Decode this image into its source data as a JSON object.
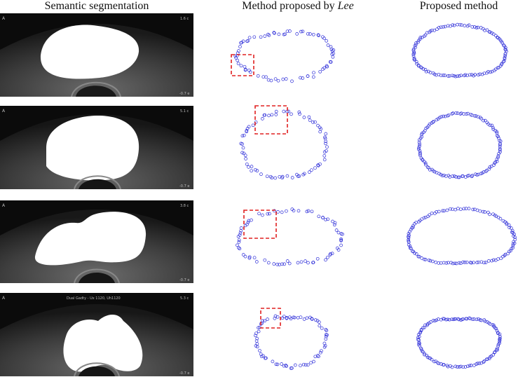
{
  "headers": {
    "col1": "Semantic segmentation",
    "col2_prefix": "Method proposed by ",
    "col2_emph": "Lee",
    "col3": "Proposed method"
  },
  "overlays": {
    "row1_corner": "A",
    "row1_top_right": "1.6 c",
    "row1_bottom_right": "-0.7 e",
    "row2_corner": "A",
    "row2_top_right": "5.1 c",
    "row2_bottom_right": "-0.7 e",
    "row3_corner": "A",
    "row3_top_right": "3.8 c",
    "row3_bottom_right": "-0.7 e",
    "row4_corner": "A",
    "row4_top_center": "Dual Gadty - Ux 1120, Uh1120",
    "row4_top_right": "5.3 c",
    "row4_bottom_right": "-0.7 e"
  },
  "colors": {
    "point": "#2b2bd8",
    "highlight": "#e02020",
    "panel_bg": "#0b0b0b",
    "mask": "#ffffff"
  }
}
